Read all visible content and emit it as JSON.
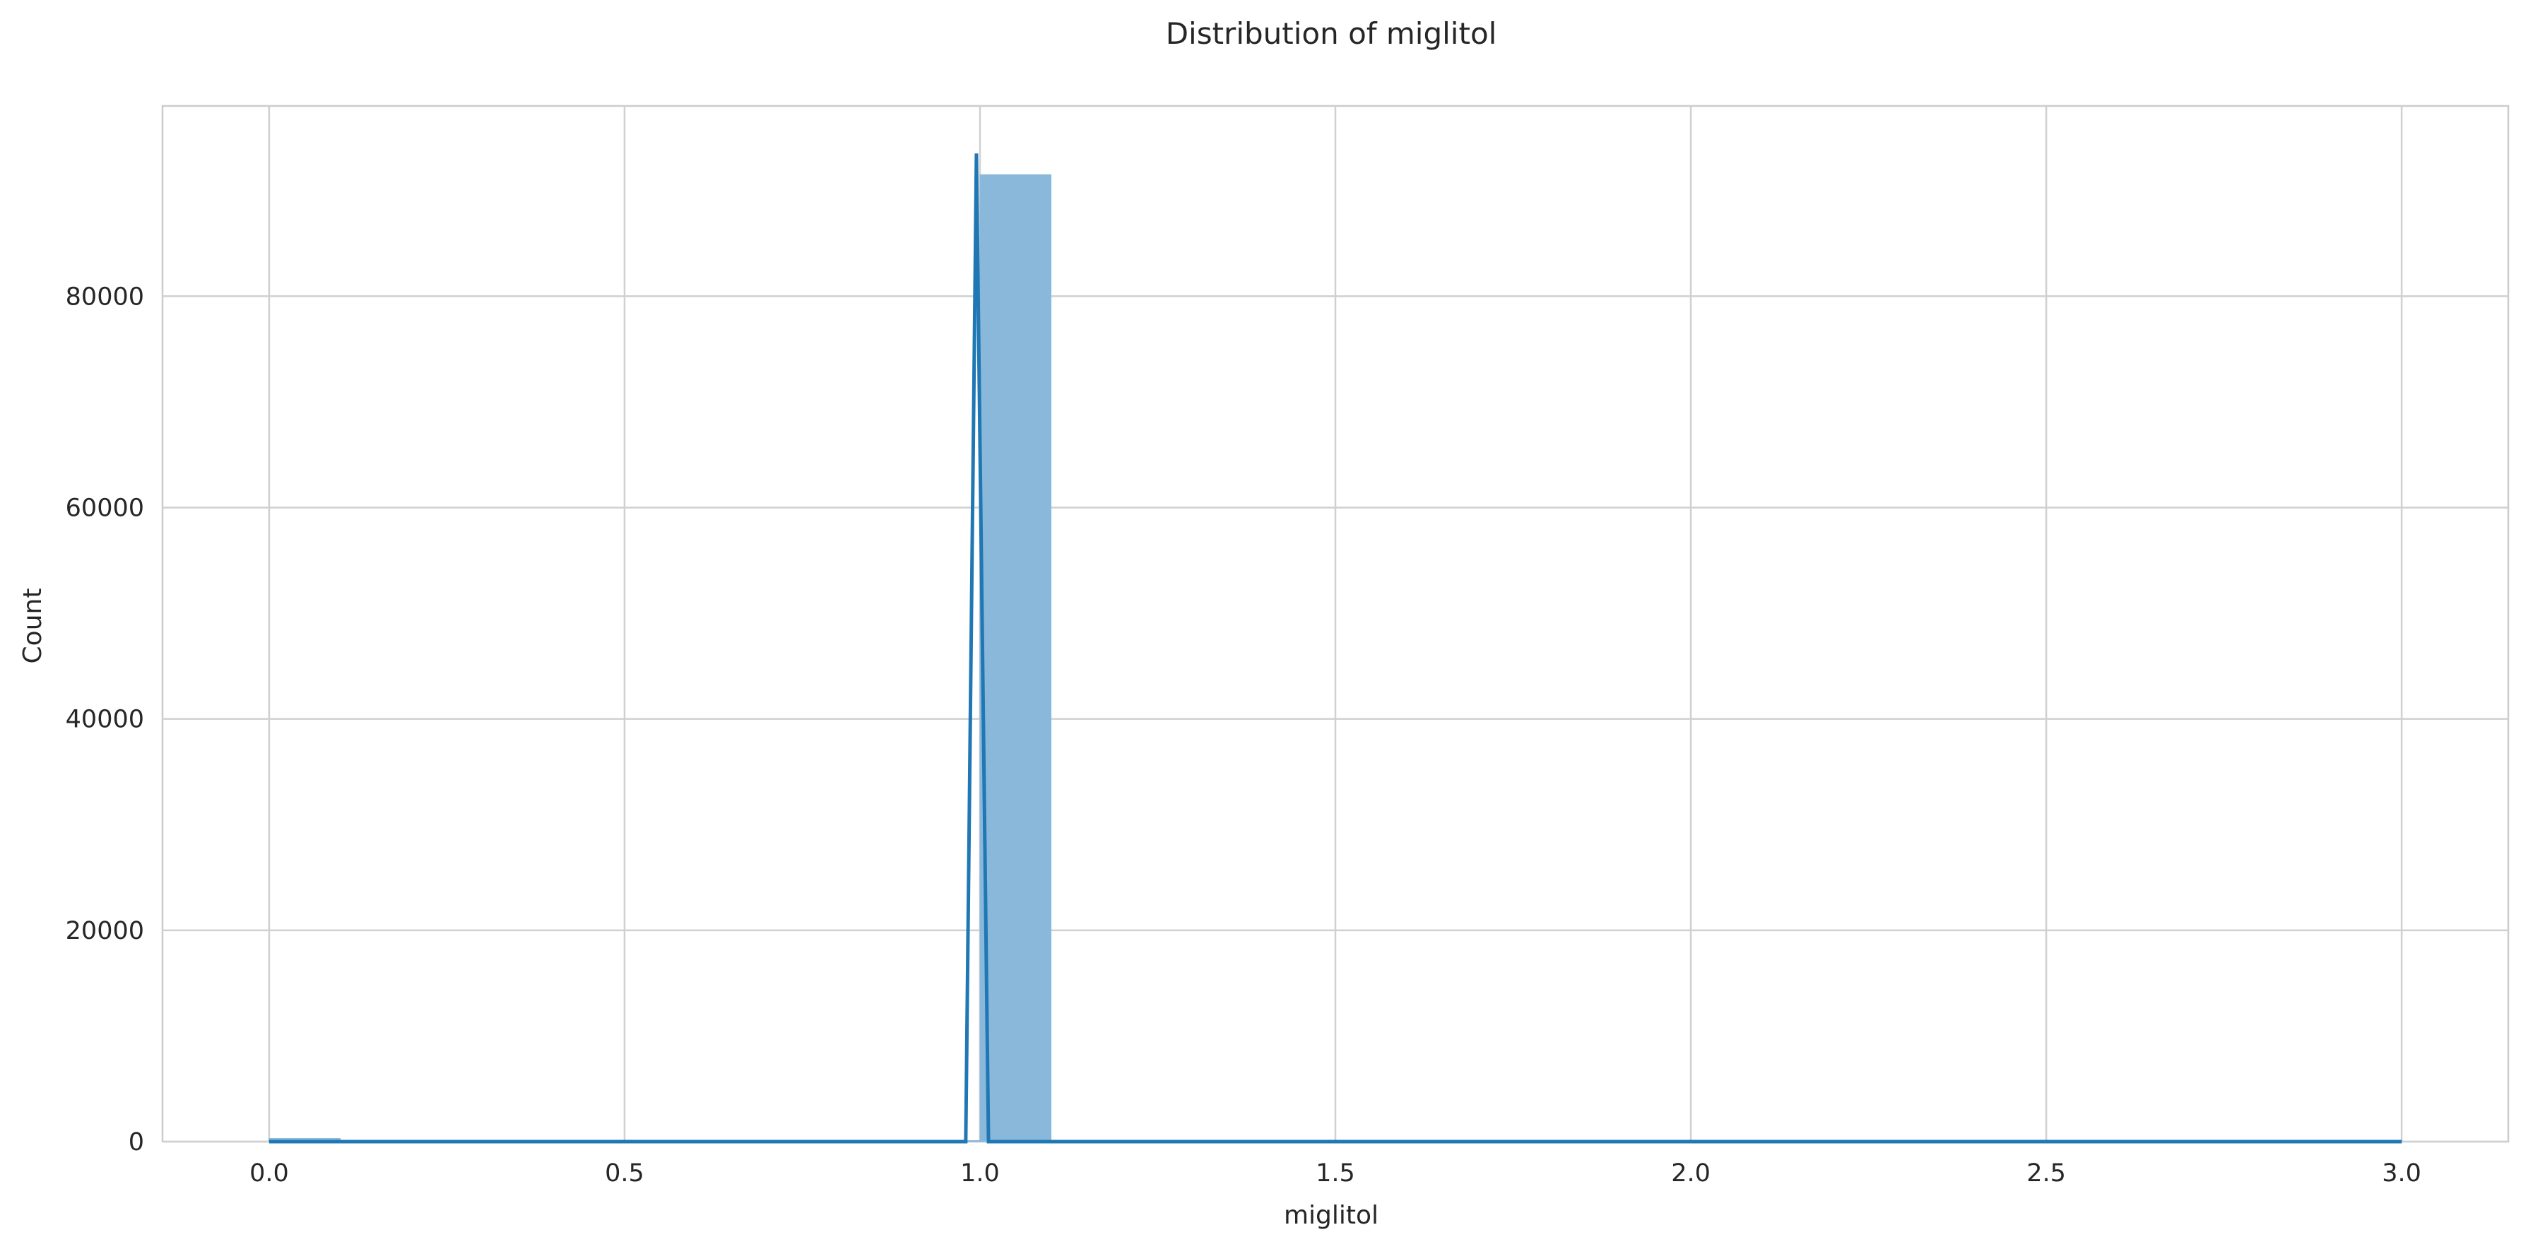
{
  "chart_data": {
    "type": "bar",
    "title": "Distribution of miglitol",
    "xlabel": "miglitol",
    "ylabel": "Count",
    "xlim": [
      -0.15,
      3.15
    ],
    "ylim": [
      0,
      98000
    ],
    "x_ticks": [
      0.0,
      0.5,
      1.0,
      1.5,
      2.0,
      2.5,
      3.0
    ],
    "x_tick_labels": [
      "0.0",
      "0.5",
      "1.0",
      "1.5",
      "2.0",
      "2.5",
      "3.0"
    ],
    "y_ticks": [
      0,
      20000,
      40000,
      60000,
      80000
    ],
    "y_tick_labels": [
      "0",
      "20000",
      "40000",
      "60000",
      "80000"
    ],
    "grid": true,
    "bar_color": "#8ab8da",
    "line_color": "#1f77b4",
    "bins": [
      {
        "x0": 0.0,
        "x1": 0.1,
        "count": 300
      },
      {
        "x0": 0.1,
        "x1": 0.2,
        "count": 0
      },
      {
        "x0": 0.2,
        "x1": 0.3,
        "count": 0
      },
      {
        "x0": 0.3,
        "x1": 0.4,
        "count": 0
      },
      {
        "x0": 0.4,
        "x1": 0.5,
        "count": 0
      },
      {
        "x0": 0.5,
        "x1": 0.6,
        "count": 0
      },
      {
        "x0": 0.6,
        "x1": 0.7,
        "count": 0
      },
      {
        "x0": 0.7,
        "x1": 0.8,
        "count": 0
      },
      {
        "x0": 0.8,
        "x1": 0.9,
        "count": 0
      },
      {
        "x0": 0.9,
        "x1": 1.0,
        "count": 0
      },
      {
        "x0": 1.0,
        "x1": 1.1,
        "count": 91500
      },
      {
        "x0": 1.1,
        "x1": 1.2,
        "count": 0
      },
      {
        "x0": 1.2,
        "x1": 1.3,
        "count": 0
      },
      {
        "x0": 1.3,
        "x1": 1.4,
        "count": 0
      },
      {
        "x0": 1.4,
        "x1": 1.5,
        "count": 0
      },
      {
        "x0": 1.5,
        "x1": 1.6,
        "count": 0
      },
      {
        "x0": 1.6,
        "x1": 1.7,
        "count": 0
      },
      {
        "x0": 1.7,
        "x1": 1.8,
        "count": 0
      },
      {
        "x0": 1.8,
        "x1": 1.9,
        "count": 0
      },
      {
        "x0": 1.9,
        "x1": 2.0,
        "count": 0
      },
      {
        "x0": 2.0,
        "x1": 2.1,
        "count": 100
      },
      {
        "x0": 2.1,
        "x1": 2.2,
        "count": 0
      },
      {
        "x0": 2.2,
        "x1": 2.3,
        "count": 0
      },
      {
        "x0": 2.3,
        "x1": 2.4,
        "count": 0
      },
      {
        "x0": 2.4,
        "x1": 2.5,
        "count": 0
      },
      {
        "x0": 2.5,
        "x1": 2.6,
        "count": 0
      },
      {
        "x0": 2.6,
        "x1": 2.7,
        "count": 0
      },
      {
        "x0": 2.7,
        "x1": 2.8,
        "count": 0
      },
      {
        "x0": 2.8,
        "x1": 2.9,
        "count": 0
      },
      {
        "x0": 2.9,
        "x1": 3.0,
        "count": 50
      }
    ],
    "kde_line": {
      "x": [
        0.0,
        0.98,
        0.995,
        1.012,
        3.0
      ],
      "y": [
        0,
        0,
        93500,
        0,
        0
      ]
    }
  }
}
